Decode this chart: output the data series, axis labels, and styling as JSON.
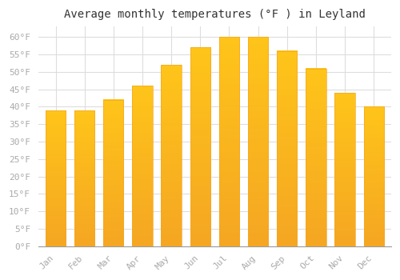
{
  "months": [
    "Jan",
    "Feb",
    "Mar",
    "Apr",
    "May",
    "Jun",
    "Jul",
    "Aug",
    "Sep",
    "Oct",
    "Nov",
    "Dec"
  ],
  "values": [
    39,
    39,
    42,
    46,
    52,
    57,
    60,
    60,
    56,
    51,
    44,
    40
  ],
  "bar_color_top": "#FDD835",
  "bar_color_bottom": "#F5A623",
  "bar_edge_color": "#F5A623",
  "title": "Average monthly temperatures (°F ) in Leyland",
  "ylim": [
    0,
    63
  ],
  "yticks": [
    0,
    5,
    10,
    15,
    20,
    25,
    30,
    35,
    40,
    45,
    50,
    55,
    60
  ],
  "ytick_labels": [
    "0°F",
    "5°F",
    "10°F",
    "15°F",
    "20°F",
    "25°F",
    "30°F",
    "35°F",
    "40°F",
    "45°F",
    "50°F",
    "55°F",
    "60°F"
  ],
  "plot_bg_color": "#FFFFFF",
  "fig_bg_color": "#FFFFFF",
  "grid_color": "#DDDDDD",
  "title_fontsize": 10,
  "tick_fontsize": 8,
  "tick_color": "#AAAAAA",
  "font_family": "monospace"
}
